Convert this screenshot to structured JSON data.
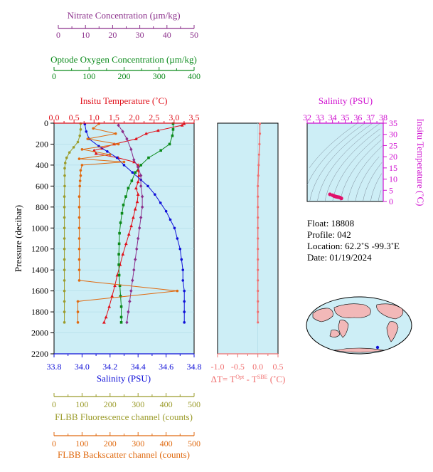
{
  "colors": {
    "nitrate": "#8b2f8b",
    "oxygen": "#0a8a1a",
    "temperature": "#e0101a",
    "salinity": "#1010d8",
    "fluorescence": "#9b9b2a",
    "backscatter": "#e06a10",
    "delta": "#f07070",
    "ts_axis": "#d010d0",
    "panel_bg": "#cdeef6"
  },
  "axes": {
    "nitrate": {
      "label": "Nitrate Concentration (µm/kg)",
      "range": [
        0,
        50
      ],
      "ticks": [
        "0",
        "10",
        "20",
        "30",
        "40",
        "50"
      ]
    },
    "oxygen": {
      "label": "Optode Oxygen Concentration (µm/kg)",
      "range": [
        0,
        400
      ],
      "ticks": [
        "0",
        "100",
        "200",
        "300",
        "400"
      ]
    },
    "temperature": {
      "label": "Insitu Temperature (˚C)",
      "range": [
        0.0,
        3.5
      ],
      "ticks": [
        "0.0",
        "0.5",
        "1.0",
        "1.5",
        "2.0",
        "2.5",
        "3.0",
        "3.5"
      ]
    },
    "salinity": {
      "label": "Salinity (PSU)",
      "range": [
        33.8,
        34.8
      ],
      "ticks": [
        "33.8",
        "34.0",
        "34.2",
        "34.4",
        "34.6",
        "34.8"
      ]
    },
    "pressure": {
      "label": "Pressure (decibar)",
      "range": [
        0,
        2200
      ],
      "ticks": [
        "0",
        "200",
        "400",
        "600",
        "800",
        "1000",
        "1200",
        "1400",
        "1600",
        "1800",
        "2000",
        "2200"
      ]
    },
    "fluorescence": {
      "label": "FLBB Fluorescence channel (counts)",
      "range": [
        0,
        500
      ],
      "ticks": [
        "0",
        "100",
        "200",
        "300",
        "400",
        "500"
      ]
    },
    "backscatter": {
      "label": "FLBB Backscatter channel (counts)",
      "range": [
        0,
        500
      ],
      "ticks": [
        "0",
        "100",
        "200",
        "300",
        "400",
        "500"
      ]
    },
    "delta": {
      "label_prefix": "ΔT= T",
      "label_sup1": "Opt",
      "label_mid": " - T",
      "label_sup2": "SBE",
      "label_suffix": " (˚C)",
      "range": [
        -1.0,
        0.5
      ],
      "ticks": [
        "-1.0",
        "-0.5",
        "0.0",
        "0.5"
      ]
    },
    "ts_salinity": {
      "label": "Salinity (PSU)",
      "range": [
        32,
        38
      ],
      "ticks": [
        "32",
        "33",
        "34",
        "35",
        "36",
        "37",
        "38"
      ]
    },
    "ts_temperature": {
      "label": "Insitu Temperature (˚C)",
      "range": [
        0,
        35
      ],
      "ticks": [
        "0",
        "5",
        "10",
        "15",
        "20",
        "25",
        "30",
        "35"
      ]
    }
  },
  "info": {
    "float": "Float:  18808",
    "profile": "Profile:  042",
    "location": "Location:  62.2˚S  -99.3˚E",
    "date": "Date:  01/19/2024"
  },
  "chart_data": [
    {
      "type": "line",
      "title": "",
      "ylabel": "Pressure (decibar)",
      "ylim": [
        0,
        2200
      ],
      "y_inverted": true,
      "series": [
        {
          "name": "Insitu Temperature (˚C)",
          "axis": "temperature",
          "color": "#e0101a",
          "marker": "triangle",
          "points": [
            [
              3.25,
              5
            ],
            [
              3.2,
              20
            ],
            [
              2.6,
              70
            ],
            [
              2.3,
              100
            ],
            [
              2.05,
              150
            ],
            [
              1.5,
              200
            ],
            [
              1.2,
              240
            ],
            [
              1.0,
              260
            ],
            [
              1.05,
              290
            ],
            [
              1.6,
              330
            ],
            [
              2.0,
              370
            ],
            [
              2.1,
              400
            ],
            [
              2.1,
              450
            ],
            [
              2.12,
              500
            ],
            [
              2.1,
              560
            ],
            [
              2.05,
              620
            ],
            [
              2.1,
              680
            ],
            [
              2.08,
              750
            ],
            [
              2.03,
              820
            ],
            [
              1.98,
              900
            ],
            [
              1.93,
              980
            ],
            [
              1.87,
              1060
            ],
            [
              1.8,
              1150
            ],
            [
              1.72,
              1250
            ],
            [
              1.65,
              1350
            ],
            [
              1.58,
              1450
            ],
            [
              1.52,
              1550
            ],
            [
              1.45,
              1650
            ],
            [
              1.38,
              1750
            ],
            [
              1.3,
              1850
            ],
            [
              1.25,
              1900
            ]
          ]
        },
        {
          "name": "Salinity (PSU)",
          "axis": "salinity",
          "color": "#1010d8",
          "marker": "circle",
          "points": [
            [
              34.02,
              10
            ],
            [
              34.03,
              80
            ],
            [
              34.05,
              150
            ],
            [
              34.12,
              220
            ],
            [
              34.18,
              270
            ],
            [
              34.25,
              330
            ],
            [
              34.3,
              400
            ],
            [
              34.36,
              470
            ],
            [
              34.42,
              540
            ],
            [
              34.47,
              600
            ],
            [
              34.52,
              680
            ],
            [
              34.56,
              760
            ],
            [
              34.6,
              840
            ],
            [
              34.63,
              920
            ],
            [
              34.66,
              1000
            ],
            [
              34.68,
              1100
            ],
            [
              34.7,
              1200
            ],
            [
              34.71,
              1300
            ],
            [
              34.72,
              1400
            ],
            [
              34.72,
              1500
            ],
            [
              34.73,
              1600
            ],
            [
              34.73,
              1700
            ],
            [
              34.73,
              1800
            ],
            [
              34.73,
              1900
            ]
          ]
        },
        {
          "name": "Optode Oxygen Concentration (µm/kg)",
          "axis": "oxygen",
          "color": "#0a8a1a",
          "marker": "square",
          "points": [
            [
              340,
              5
            ],
            [
              340,
              60
            ],
            [
              338,
              120
            ],
            [
              330,
              200
            ],
            [
              305,
              260
            ],
            [
              270,
              330
            ],
            [
              248,
              400
            ],
            [
              232,
              470
            ],
            [
              222,
              550
            ],
            [
              212,
              620
            ],
            [
              205,
              700
            ],
            [
              198,
              780
            ],
            [
              194,
              860
            ],
            [
              190,
              950
            ],
            [
              187,
              1050
            ],
            [
              186,
              1150
            ],
            [
              185,
              1250
            ],
            [
              185,
              1350
            ],
            [
              186,
              1450
            ],
            [
              188,
              1550
            ],
            [
              190,
              1650
            ],
            [
              192,
              1750
            ],
            [
              192,
              1850
            ],
            [
              192,
              1900
            ]
          ]
        },
        {
          "name": "Nitrate Concentration (µm/kg)",
          "axis": "nitrate",
          "color": "#8b2f8b",
          "marker": "diamond",
          "points": [
            [
              23,
              20
            ],
            [
              24.5,
              80
            ],
            [
              26,
              150
            ],
            [
              27.5,
              250
            ],
            [
              28.5,
              350
            ],
            [
              30,
              420
            ],
            [
              31,
              500
            ],
            [
              31,
              600
            ],
            [
              31.5,
              700
            ],
            [
              31.5,
              800
            ],
            [
              31,
              900
            ],
            [
              30.5,
              1000
            ],
            [
              30,
              1100
            ],
            [
              29.5,
              1200
            ],
            [
              29,
              1300
            ],
            [
              28.5,
              1400
            ],
            [
              28,
              1500
            ],
            [
              27.5,
              1600
            ],
            [
              27,
              1700
            ],
            [
              26.5,
              1800
            ],
            [
              26,
              1900
            ]
          ]
        },
        {
          "name": "FLBB Fluorescence channel (counts)",
          "axis": "fluorescence",
          "color": "#9b9b2a",
          "marker": "circle",
          "points": [
            [
              95,
              5
            ],
            [
              95,
              60
            ],
            [
              92,
              120
            ],
            [
              85,
              180
            ],
            [
              70,
              230
            ],
            [
              55,
              280
            ],
            [
              45,
              330
            ],
            [
              40,
              380
            ],
            [
              38,
              430
            ],
            [
              38,
              500
            ],
            [
              38,
              600
            ],
            [
              37,
              700
            ],
            [
              37,
              800
            ],
            [
              37,
              900
            ],
            [
              37,
              1000
            ],
            [
              37,
              1100
            ],
            [
              37,
              1200
            ],
            [
              37,
              1300
            ],
            [
              37,
              1400
            ],
            [
              37,
              1500
            ],
            [
              37,
              1600
            ],
            [
              37,
              1700
            ],
            [
              37,
              1800
            ],
            [
              37,
              1900
            ]
          ]
        },
        {
          "name": "FLBB Backscatter channel (counts)",
          "axis": "backscatter",
          "color": "#e06a10",
          "marker": "circle",
          "points": [
            [
              160,
              5
            ],
            [
              140,
              50
            ],
            [
              220,
              100
            ],
            [
              120,
              150
            ],
            [
              230,
              200
            ],
            [
              100,
              250
            ],
            [
              200,
              300
            ],
            [
              90,
              340
            ],
            [
              250,
              370
            ],
            [
              100,
              400
            ],
            [
              95,
              450
            ],
            [
              95,
              500
            ],
            [
              93,
              550
            ],
            [
              92,
              600
            ],
            [
              90,
              700
            ],
            [
              90,
              800
            ],
            [
              90,
              900
            ],
            [
              90,
              1000
            ],
            [
              90,
              1100
            ],
            [
              90,
              1200
            ],
            [
              90,
              1300
            ],
            [
              90,
              1400
            ],
            [
              90,
              1500
            ],
            [
              440,
              1600
            ],
            [
              85,
              1700
            ],
            [
              85,
              1800
            ],
            [
              85,
              1900
            ]
          ]
        }
      ]
    },
    {
      "type": "line",
      "title": "",
      "ylabel": "",
      "xlim": [
        -1.0,
        0.5
      ],
      "ylim": [
        0,
        2200
      ],
      "series": [
        {
          "name": "ΔT",
          "color": "#f07070",
          "points": [
            [
              0.05,
              5
            ],
            [
              0.05,
              100
            ],
            [
              0.04,
              200
            ],
            [
              0.03,
              300
            ],
            [
              0.02,
              400
            ],
            [
              0.01,
              500
            ],
            [
              0.0,
              600
            ],
            [
              0.0,
              700
            ],
            [
              0.0,
              800
            ],
            [
              0.0,
              900
            ],
            [
              0.0,
              1000
            ],
            [
              0.0,
              1100
            ],
            [
              0.0,
              1200
            ],
            [
              0.0,
              1300
            ],
            [
              0.0,
              1400
            ],
            [
              0.0,
              1500
            ],
            [
              0.0,
              1600
            ],
            [
              0.0,
              1700
            ],
            [
              0.0,
              1800
            ],
            [
              0.0,
              1900
            ]
          ]
        }
      ]
    },
    {
      "type": "scatter",
      "title": "",
      "xlabel": "Salinity (PSU)",
      "ylabel": "Insitu Temperature (˚C)",
      "xlim": [
        32,
        38
      ],
      "ylim": [
        0,
        35
      ],
      "series": [
        {
          "name": "T-S",
          "color": "#e0106a",
          "points": [
            [
              33.8,
              3.2
            ],
            [
              34.0,
              2.8
            ],
            [
              34.1,
              2.5
            ],
            [
              34.2,
              2.3
            ],
            [
              34.3,
              2.1
            ],
            [
              34.4,
              2.0
            ],
            [
              34.5,
              1.9
            ],
            [
              34.6,
              1.7
            ],
            [
              34.7,
              1.4
            ]
          ]
        }
      ]
    }
  ]
}
